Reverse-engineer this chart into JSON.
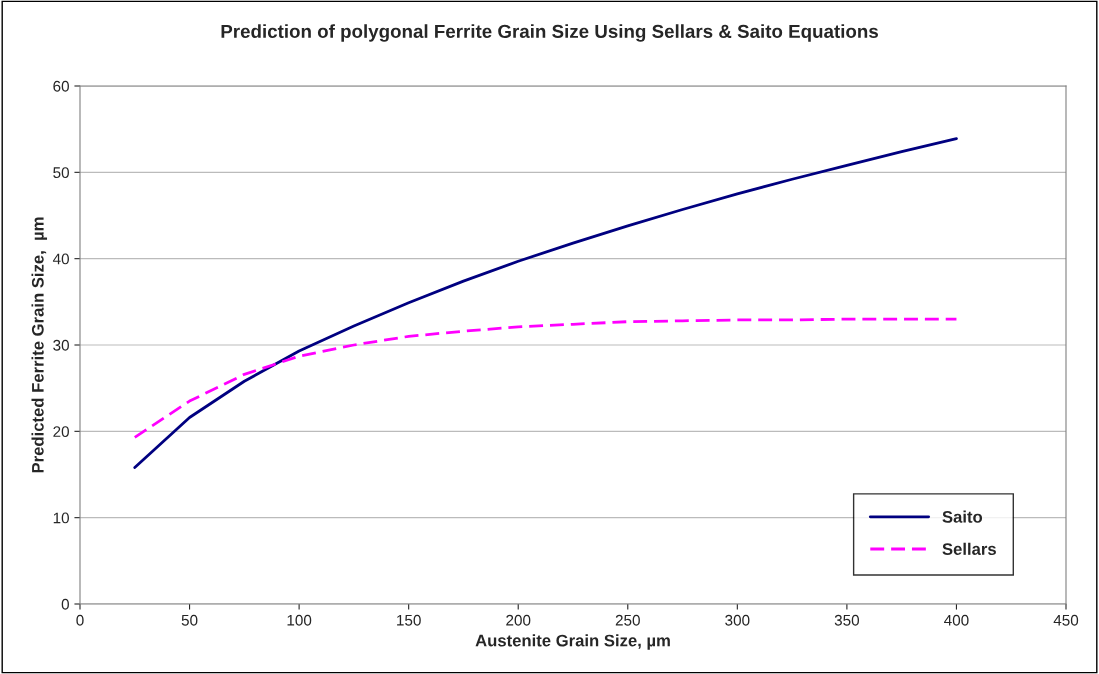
{
  "chart_data": {
    "type": "line",
    "title": "Prediction of polygonal Ferrite Grain Size Using Sellars & Saito Equations",
    "xlabel": "Austenite Grain Size, µm",
    "ylabel": "Predicted Ferrite Grain Size,  µm",
    "x": [
      25,
      50,
      75,
      100,
      125,
      150,
      175,
      200,
      225,
      250,
      275,
      300,
      325,
      350,
      375,
      400
    ],
    "series": [
      {
        "name": "Saito",
        "color": "#000080",
        "line_style": "solid",
        "values": [
          15.8,
          21.6,
          25.8,
          29.3,
          32.2,
          34.9,
          37.4,
          39.7,
          41.8,
          43.8,
          45.7,
          47.5,
          49.2,
          50.8,
          52.4,
          53.9
        ]
      },
      {
        "name": "Sellars",
        "color": "#ff00ff",
        "line_style": "dashed",
        "values": [
          19.3,
          23.5,
          26.6,
          28.7,
          30.0,
          31.0,
          31.6,
          32.1,
          32.4,
          32.7,
          32.8,
          32.9,
          32.9,
          33.0,
          33.0,
          33.0
        ]
      }
    ],
    "xlim": [
      0,
      450
    ],
    "xticks": [
      0,
      50,
      100,
      150,
      200,
      250,
      300,
      350,
      400,
      450
    ],
    "ylim": [
      0,
      60
    ],
    "yticks": [
      0,
      10,
      20,
      30,
      40,
      50,
      60
    ],
    "grid": "y",
    "legend": "bottom right",
    "marker": "none"
  }
}
